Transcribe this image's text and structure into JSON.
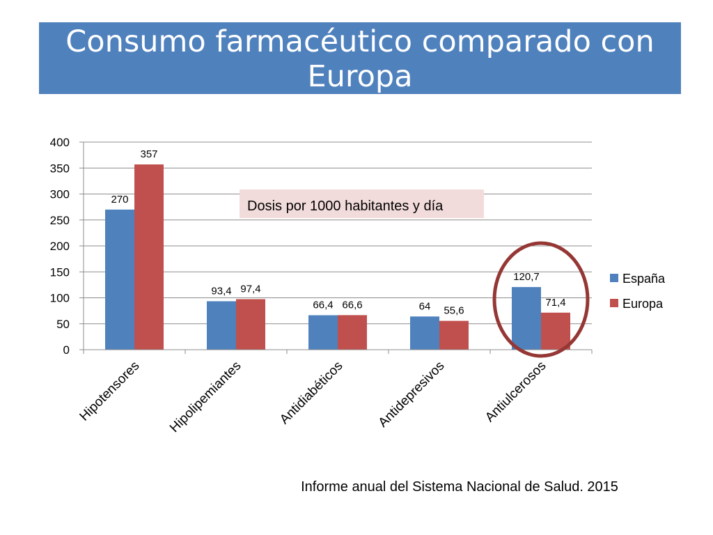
{
  "slide": {
    "title": "Consumo farmacéutico comparado con Europa",
    "source": "Informe anual del Sistema Nacional de Salud. 2015"
  },
  "colors": {
    "title_bg": "#4f81bd",
    "espana": "#4f81bd",
    "europa": "#c0504d",
    "annotation_bg": "#f2dcdb",
    "highlight_circle": "#953735"
  },
  "chart_data": {
    "type": "bar",
    "title": "",
    "xlabel": "",
    "ylabel": "",
    "categories": [
      "Hipotensores",
      "Hipolipemiantes",
      "Antidiabéticos",
      "Antidepresivos",
      "Antiulcerosos"
    ],
    "series": [
      {
        "name": "España",
        "values": [
          270,
          93.4,
          66.4,
          64,
          120.7
        ],
        "labels": [
          "270",
          "93,4",
          "66,4",
          "64",
          "120,7"
        ]
      },
      {
        "name": "Europa",
        "values": [
          357,
          97.4,
          66.6,
          55.6,
          71.4
        ],
        "labels": [
          "357",
          "97,4",
          "66,6",
          "55,6",
          "71,4"
        ]
      }
    ],
    "ylim": [
      0,
      400
    ],
    "yticks": [
      0,
      50,
      100,
      150,
      200,
      250,
      300,
      350,
      400
    ],
    "grid": true,
    "legend": "right",
    "annotation": "Dosis por 1000 habitantes y día",
    "highlighted_category": "Antiulcerosos"
  }
}
